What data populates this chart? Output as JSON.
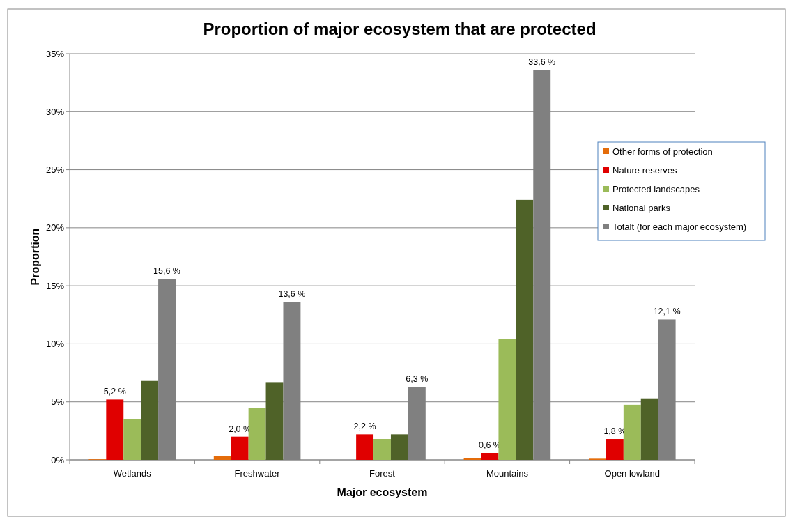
{
  "chart_data": {
    "type": "bar",
    "title": "Proportion of major ecosystem that are protected",
    "xlabel": "Major ecosystem",
    "ylabel": "Proportion",
    "categories": [
      "Wetlands",
      "Freshwater",
      "Forest",
      "Mountains",
      "Open lowland"
    ],
    "series": [
      {
        "name": "Other forms of protection",
        "color": "#e46c0a",
        "values": [
          0.05,
          0.3,
          0,
          0.15,
          0.1
        ]
      },
      {
        "name": "Nature reserves",
        "color": "#e00000",
        "values": [
          5.2,
          2.0,
          2.2,
          0.6,
          1.8
        ],
        "value_labels": [
          "5,2 %",
          "2,0 %",
          "2,2 %",
          "0,6 %",
          "1,8 %"
        ]
      },
      {
        "name": "Protected landscapes",
        "color": "#9bbb59",
        "values": [
          3.5,
          4.5,
          1.8,
          10.4,
          4.75
        ]
      },
      {
        "name": "National parks",
        "color": "#4f6228",
        "values": [
          6.8,
          6.7,
          2.2,
          22.4,
          5.3
        ]
      },
      {
        "name": "Totalt (for each major ecosystem)",
        "color": "#808080",
        "values": [
          15.6,
          13.6,
          6.3,
          33.6,
          12.1
        ],
        "value_labels": [
          "15,6 %",
          "13,6 %",
          "6,3 %",
          "33,6 %",
          "12,1 %"
        ]
      }
    ],
    "ylim": [
      0,
      35
    ],
    "yticks": [
      {
        "value": 0,
        "label": "0%"
      },
      {
        "value": 5,
        "label": "5%"
      },
      {
        "value": 10,
        "label": "10%"
      },
      {
        "value": 15,
        "label": "15%"
      },
      {
        "value": 20,
        "label": "20%"
      },
      {
        "value": 25,
        "label": "25%"
      },
      {
        "value": 30,
        "label": "30%"
      },
      {
        "value": 35,
        "label": "35%"
      }
    ],
    "grid": "y",
    "legend": "right"
  }
}
